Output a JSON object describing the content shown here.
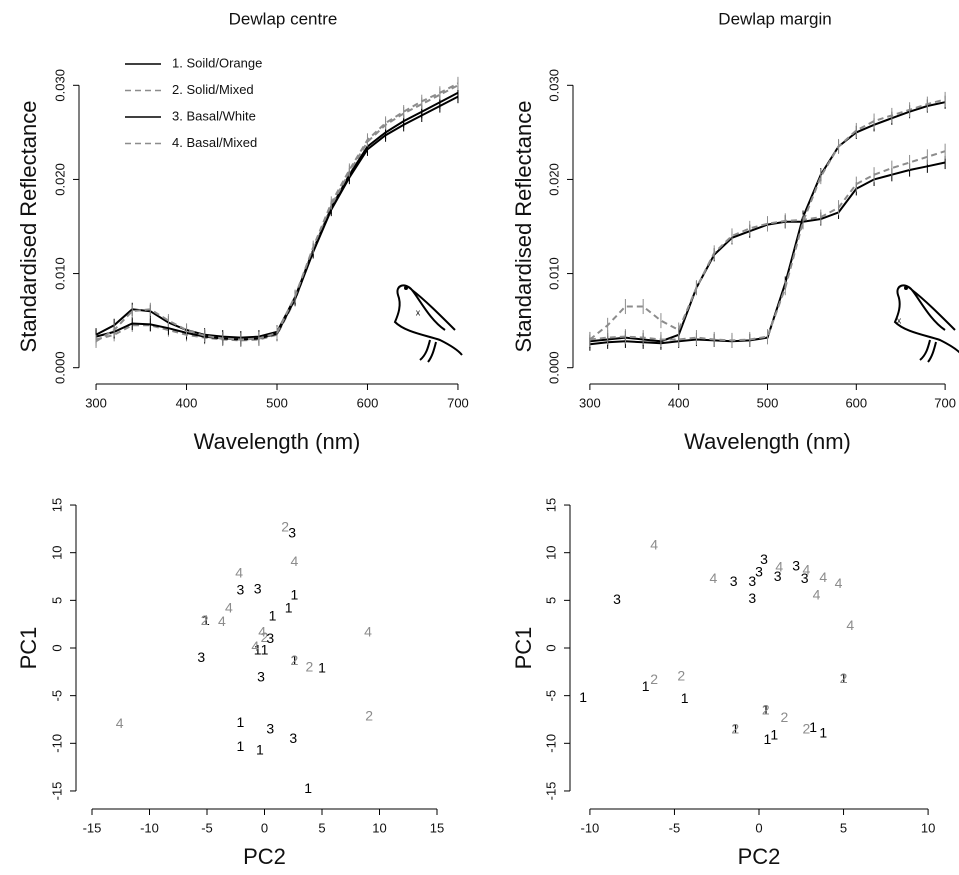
{
  "chart_data": [
    {
      "type": "line",
      "title": "Dewlap centre",
      "xlabel": "Wavelength (nm)",
      "ylabel": "Standardised Reflectance",
      "x": [
        300,
        320,
        340,
        360,
        380,
        400,
        420,
        440,
        460,
        480,
        500,
        520,
        540,
        560,
        580,
        600,
        620,
        640,
        660,
        680,
        700
      ],
      "xlim": [
        290,
        710
      ],
      "xticks": [
        300,
        400,
        500,
        600,
        700
      ],
      "ylim": [
        -0.0012,
        0.0312
      ],
      "yticks": [
        {
          "value": 0,
          "label": "0.000"
        },
        {
          "value": 0.01,
          "label": "0.010"
        },
        {
          "value": 0.02,
          "label": "0.020"
        },
        {
          "value": 0.03,
          "label": "0.030"
        }
      ],
      "legend": "upper left",
      "series": [
        {
          "name": "1. Soild/Orange",
          "color": "#000000",
          "linestyle": "solid",
          "error": 0.0007,
          "values": [
            0.0035,
            0.0045,
            0.0062,
            0.006,
            0.0048,
            0.004,
            0.0035,
            0.0033,
            0.0032,
            0.0033,
            0.0038,
            0.0075,
            0.0125,
            0.017,
            0.0205,
            0.0235,
            0.025,
            0.0262,
            0.0272,
            0.0282,
            0.0292
          ]
        },
        {
          "name": "2. Solid/Mixed",
          "color": "#8c8c8c",
          "linestyle": "dashed",
          "error": 0.0007,
          "values": [
            0.003,
            0.0035,
            0.0045,
            0.0045,
            0.004,
            0.0035,
            0.0032,
            0.003,
            0.0029,
            0.003,
            0.0035,
            0.0072,
            0.0125,
            0.0172,
            0.0208,
            0.024,
            0.0258,
            0.027,
            0.028,
            0.029,
            0.03
          ]
        },
        {
          "name": "3. Basal/White",
          "color": "#000000",
          "linestyle": "solid",
          "error": 0.0007,
          "values": [
            0.0033,
            0.0038,
            0.0047,
            0.0046,
            0.0042,
            0.0037,
            0.0033,
            0.0031,
            0.003,
            0.0031,
            0.0036,
            0.0073,
            0.0123,
            0.0168,
            0.0202,
            0.0232,
            0.0247,
            0.0258,
            0.0268,
            0.0278,
            0.0288
          ]
        },
        {
          "name": "4. Basal/Mixed",
          "color": "#8c8c8c",
          "linestyle": "dashed",
          "error": 0.0007,
          "values": [
            0.0028,
            0.004,
            0.006,
            0.0062,
            0.005,
            0.004,
            0.0034,
            0.0031,
            0.003,
            0.0031,
            0.0037,
            0.0076,
            0.0128,
            0.0175,
            0.021,
            0.0242,
            0.026,
            0.0272,
            0.0283,
            0.0292,
            0.0302
          ]
        }
      ]
    },
    {
      "type": "line",
      "title": "Dewlap margin",
      "xlabel": "Wavelength (nm)",
      "ylabel": "Standardised Reflectance",
      "x": [
        300,
        320,
        340,
        360,
        380,
        400,
        420,
        440,
        460,
        480,
        500,
        520,
        540,
        560,
        580,
        600,
        620,
        640,
        660,
        680,
        700
      ],
      "xlim": [
        290,
        710
      ],
      "xticks": [
        300,
        400,
        500,
        600,
        700
      ],
      "ylim": [
        -0.0012,
        0.0312
      ],
      "yticks": [
        {
          "value": 0,
          "label": "0.000"
        },
        {
          "value": 0.01,
          "label": "0.010"
        },
        {
          "value": 0.02,
          "label": "0.020"
        },
        {
          "value": 0.03,
          "label": "0.030"
        }
      ],
      "series": [
        {
          "color": "#000000",
          "linestyle": "solid",
          "error": 0.0007,
          "values": [
            0.0028,
            0.003,
            0.0032,
            0.003,
            0.0028,
            0.0035,
            0.0085,
            0.012,
            0.0138,
            0.0145,
            0.0152,
            0.0155,
            0.0155,
            0.0158,
            0.0165,
            0.019,
            0.02,
            0.0205,
            0.021,
            0.0214,
            0.0218
          ]
        },
        {
          "color": "#8c8c8c",
          "linestyle": "dashed",
          "error": 0.0008,
          "values": [
            0.003,
            0.0045,
            0.0065,
            0.0065,
            0.005,
            0.004,
            0.0085,
            0.0122,
            0.014,
            0.0148,
            0.0153,
            0.0156,
            0.0157,
            0.016,
            0.017,
            0.0195,
            0.0205,
            0.0212,
            0.0218,
            0.0224,
            0.023
          ]
        },
        {
          "color": "#000000",
          "linestyle": "solid",
          "error": 0.0007,
          "values": [
            0.0025,
            0.0027,
            0.0028,
            0.0027,
            0.0026,
            0.0028,
            0.003,
            0.0029,
            0.0028,
            0.0029,
            0.0032,
            0.009,
            0.016,
            0.0205,
            0.0235,
            0.025,
            0.0258,
            0.0265,
            0.0272,
            0.0278,
            0.0282
          ]
        },
        {
          "color": "#8c8c8c",
          "linestyle": "dashed",
          "error": 0.0008,
          "values": [
            0.003,
            0.0032,
            0.0033,
            0.0032,
            0.003,
            0.003,
            0.0032,
            0.003,
            0.0029,
            0.003,
            0.0033,
            0.0085,
            0.0155,
            0.0203,
            0.0235,
            0.0252,
            0.0262,
            0.0268,
            0.0274,
            0.028,
            0.0285
          ]
        }
      ]
    },
    {
      "type": "scatter",
      "xlabel": "PC2",
      "ylabel": "PC1",
      "xlim": [
        -16,
        16
      ],
      "xticks": [
        -15,
        -10,
        -5,
        0,
        5,
        10,
        15
      ],
      "ylim": [
        -16,
        16
      ],
      "yticks": [
        -15,
        -10,
        -5,
        0,
        5,
        10,
        15
      ],
      "series": [
        {
          "marker": "1",
          "color": "#000000",
          "x": [
            -5.1,
            2.6,
            2.1,
            0.7,
            -0.6,
            0,
            2.6,
            5.0,
            -2.1,
            -2.1,
            -0.4,
            3.8
          ],
          "y": [
            2.8,
            5.5,
            4.1,
            3.3,
            -0.3,
            -0.3,
            -1.4,
            -2.2,
            -7.9,
            -10.4,
            -10.8,
            -14.8
          ]
        },
        {
          "marker": "2",
          "color": "#8c8c8c",
          "x": [
            1.8,
            -5.2,
            0,
            2.6,
            3.9,
            9.1
          ],
          "y": [
            12.6,
            2.8,
            1.0,
            -1.4,
            -2.1,
            -7.2
          ]
        },
        {
          "marker": "3",
          "color": "#000000",
          "x": [
            2.4,
            -2.1,
            -0.6,
            0.5,
            -5.5,
            -0.3,
            0.5,
            2.5
          ],
          "y": [
            12.0,
            6.0,
            6.1,
            0.9,
            -1.1,
            -3.1,
            -8.6,
            -9.6
          ]
        },
        {
          "marker": "4",
          "color": "#8c8c8c",
          "x": [
            2.6,
            -2.2,
            -3.1,
            -3.7,
            -0.2,
            -0.8,
            9.0,
            -12.6
          ],
          "y": [
            9.0,
            7.8,
            4.1,
            2.7,
            1.6,
            0.1,
            1.6,
            -8.0
          ]
        }
      ]
    },
    {
      "type": "scatter",
      "xlabel": "PC2",
      "ylabel": "PC1",
      "xlim": [
        -11,
        11
      ],
      "xticks": [
        -10,
        -5,
        0,
        5,
        10
      ],
      "ylim": [
        -16,
        16
      ],
      "yticks": [
        -15,
        -10,
        -5,
        0,
        5,
        10,
        15
      ],
      "series": [
        {
          "marker": "1",
          "color": "#000000",
          "x": [
            -10.4,
            -6.7,
            -4.4,
            -1.4,
            0.4,
            0.5,
            0.9,
            3.2,
            3.8,
            5.0
          ],
          "y": [
            -5.3,
            -4.1,
            -5.4,
            -8.6,
            -6.6,
            -9.7,
            -9.2,
            -8.4,
            -9.0,
            -3.3
          ]
        },
        {
          "marker": "2",
          "color": "#8c8c8c",
          "x": [
            -6.2,
            -4.6,
            -1.4,
            0.4,
            1.5,
            2.8,
            5.0
          ],
          "y": [
            -3.4,
            -3.0,
            -8.6,
            -6.6,
            -7.4,
            -8.6,
            -3.3
          ]
        },
        {
          "marker": "3",
          "color": "#000000",
          "x": [
            -8.4,
            -1.5,
            -0.4,
            -0.4,
            0,
            0.3,
            1.1,
            2.2,
            2.7
          ],
          "y": [
            5.0,
            6.9,
            6.9,
            5.1,
            7.9,
            9.2,
            7.4,
            8.5,
            7.2
          ]
        },
        {
          "marker": "4",
          "color": "#8c8c8c",
          "x": [
            -6.2,
            -2.7,
            1.2,
            2.8,
            3.8,
            4.7,
            3.4,
            5.4
          ],
          "y": [
            10.7,
            7.2,
            8.4,
            8.1,
            7.3,
            6.7,
            5.5,
            2.3
          ]
        }
      ]
    }
  ]
}
